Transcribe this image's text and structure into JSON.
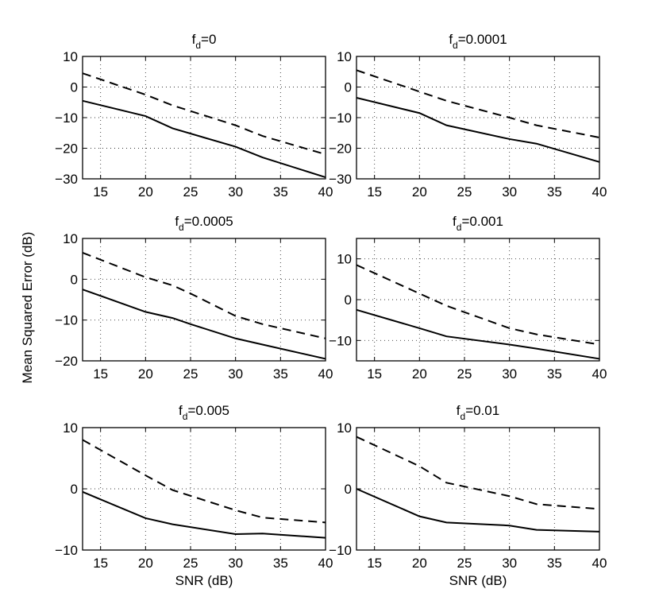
{
  "figure": {
    "ylabel": "Mean Squared Error (dB)",
    "xlabel": "SNR (dB)"
  },
  "chart_data": [
    {
      "type": "line",
      "title_base": "f",
      "title_sub": "d",
      "title_value": "=0",
      "xlabel": "",
      "ylabel": "",
      "xlim": [
        13,
        40
      ],
      "ylim": [
        -30,
        10
      ],
      "xticks": [
        15,
        20,
        25,
        30,
        35,
        40
      ],
      "yticks": [
        -30,
        -20,
        -10,
        0,
        10
      ],
      "grid": true,
      "x": [
        13,
        20,
        23,
        30,
        33,
        40
      ],
      "series": [
        {
          "name": "solid",
          "style": "solid",
          "values": [
            -4.5,
            -9.5,
            -13.5,
            -19.5,
            -23.0,
            -29.5
          ]
        },
        {
          "name": "dashed",
          "style": "dashed",
          "values": [
            4.5,
            -2.5,
            -6.0,
            -12.5,
            -16.0,
            -22.0
          ]
        }
      ]
    },
    {
      "type": "line",
      "title_base": "f",
      "title_sub": "d",
      "title_value": "=0.0001",
      "xlabel": "",
      "ylabel": "",
      "xlim": [
        13,
        40
      ],
      "ylim": [
        -30,
        10
      ],
      "xticks": [
        15,
        20,
        25,
        30,
        35,
        40
      ],
      "yticks": [
        -30,
        -20,
        -10,
        0,
        10
      ],
      "grid": true,
      "x": [
        13,
        20,
        23,
        30,
        33,
        40
      ],
      "series": [
        {
          "name": "solid",
          "style": "solid",
          "values": [
            -3.5,
            -8.5,
            -12.5,
            -17.0,
            -18.5,
            -24.5
          ]
        },
        {
          "name": "dashed",
          "style": "dashed",
          "values": [
            5.5,
            -1.5,
            -4.5,
            -10.0,
            -12.5,
            -16.5
          ]
        }
      ]
    },
    {
      "type": "line",
      "title_base": "f",
      "title_sub": "d",
      "title_value": "=0.0005",
      "xlabel": "",
      "ylabel": "",
      "xlim": [
        13,
        40
      ],
      "ylim": [
        -20,
        10
      ],
      "xticks": [
        15,
        20,
        25,
        30,
        35,
        40
      ],
      "yticks": [
        -20,
        -10,
        0,
        10
      ],
      "grid": true,
      "x": [
        13,
        20,
        23,
        25,
        30,
        33,
        40
      ],
      "series": [
        {
          "name": "solid",
          "style": "solid",
          "values": [
            -2.5,
            -8.0,
            -9.5,
            -11.0,
            -14.5,
            -16.0,
            -19.5
          ]
        },
        {
          "name": "dashed",
          "style": "dashed",
          "values": [
            6.5,
            0.5,
            -1.5,
            -3.5,
            -9.0,
            -11.0,
            -14.5
          ]
        }
      ]
    },
    {
      "type": "line",
      "title_base": "f",
      "title_sub": "d",
      "title_value": "=0.001",
      "xlabel": "",
      "ylabel": "",
      "xlim": [
        13,
        40
      ],
      "ylim": [
        -15,
        15
      ],
      "xticks": [
        15,
        20,
        25,
        30,
        35,
        40
      ],
      "yticks": [
        -10,
        0,
        10
      ],
      "grid": true,
      "x": [
        13,
        20,
        23,
        30,
        33,
        40
      ],
      "series": [
        {
          "name": "solid",
          "style": "solid",
          "values": [
            -2.5,
            -7.0,
            -9.0,
            -11.0,
            -12.0,
            -14.5
          ]
        },
        {
          "name": "dashed",
          "style": "dashed",
          "values": [
            8.5,
            1.5,
            -1.5,
            -7.0,
            -8.5,
            -11.0
          ]
        }
      ]
    },
    {
      "type": "line",
      "title_base": "f",
      "title_sub": "d",
      "title_value": "=0.005",
      "xlabel": "SNR (dB)",
      "ylabel": "",
      "xlim": [
        13,
        40
      ],
      "ylim": [
        -10,
        10
      ],
      "xticks": [
        15,
        20,
        25,
        30,
        35,
        40
      ],
      "yticks": [
        -10,
        0,
        10
      ],
      "grid": true,
      "x": [
        13,
        20,
        23,
        30,
        33,
        40
      ],
      "series": [
        {
          "name": "solid",
          "style": "solid",
          "values": [
            -0.5,
            -4.8,
            -5.8,
            -7.4,
            -7.3,
            -8.0
          ]
        },
        {
          "name": "dashed",
          "style": "dashed",
          "values": [
            8.0,
            2.2,
            -0.2,
            -3.5,
            -4.7,
            -5.5
          ]
        }
      ]
    },
    {
      "type": "line",
      "title_base": "f",
      "title_sub": "d",
      "title_value": "=0.01",
      "xlabel": "SNR (dB)",
      "ylabel": "",
      "xlim": [
        13,
        40
      ],
      "ylim": [
        -10,
        10
      ],
      "xticks": [
        15,
        20,
        25,
        30,
        35,
        40
      ],
      "yticks": [
        -10,
        0,
        10
      ],
      "grid": true,
      "x": [
        13,
        20,
        23,
        30,
        33,
        40
      ],
      "series": [
        {
          "name": "solid",
          "style": "solid",
          "values": [
            0.0,
            -4.5,
            -5.5,
            -6.0,
            -6.7,
            -7.0
          ]
        },
        {
          "name": "dashed",
          "style": "dashed",
          "values": [
            8.5,
            3.7,
            1.0,
            -1.2,
            -2.5,
            -3.3
          ]
        }
      ]
    }
  ]
}
